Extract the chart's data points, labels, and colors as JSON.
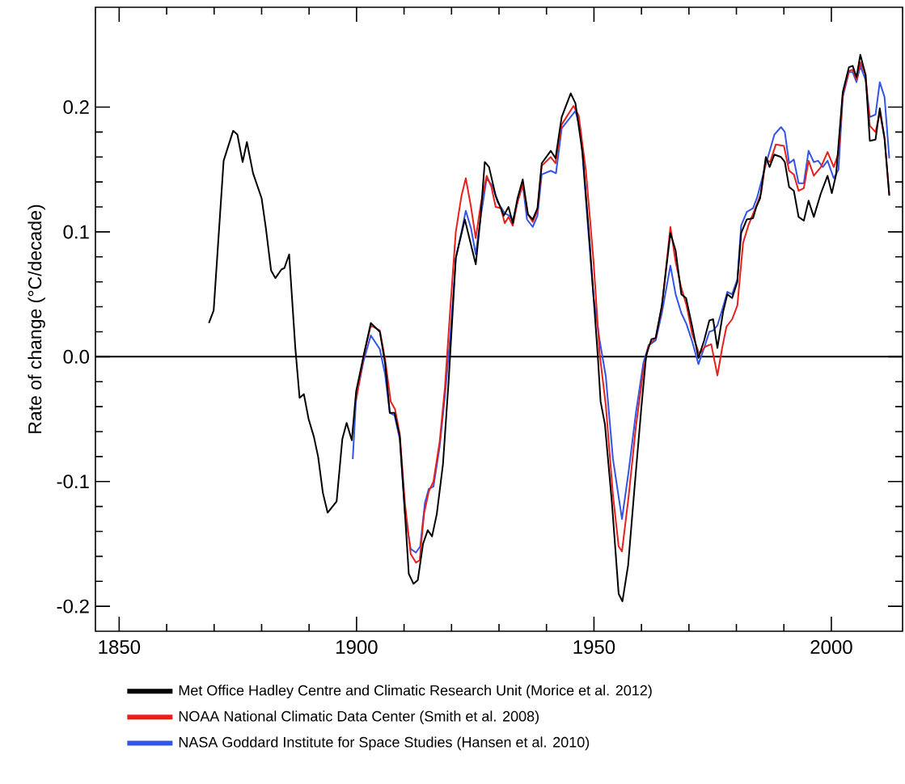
{
  "chart_data": {
    "type": "line",
    "ylabel": "Rate of change (°C/decade)",
    "xlim": [
      1845,
      2015
    ],
    "ylim": [
      -0.22,
      0.28
    ],
    "xticks": [
      1850,
      1900,
      1950,
      2000
    ],
    "yticks": [
      -0.2,
      -0.1,
      {
        "value": 0,
        "label": "0.0"
      },
      0.1,
      0.2
    ],
    "legend": "bottom",
    "ref_lines": [
      {
        "axis": "y",
        "value": 0,
        "color": "#000000"
      }
    ],
    "series": [
      {
        "name": "Met Office Hadley Centre and Climatic Research Unit (Morice et al. 2012)",
        "color": "#000000",
        "x": [
          1868.9,
          1869.9,
          1872.0,
          1874.0,
          1874.9,
          1876.0,
          1876.9,
          1878.2,
          1880.0,
          1880.9,
          1882.0,
          1882.9,
          1884.2,
          1884.8,
          1885.8,
          1887.1,
          1888.0,
          1888.9,
          1889.9,
          1891.0,
          1891.9,
          1892.9,
          1893.9,
          1895.8,
          1897.0,
          1897.9,
          1899.0,
          1899.9,
          1901.5,
          1903.0,
          1904.9,
          1906.0,
          1907.0,
          1908.0,
          1909.1,
          1910.2,
          1911.0,
          1912.0,
          1912.9,
          1914.0,
          1915.0,
          1915.9,
          1916.9,
          1918.2,
          1919.4,
          1920.9,
          1922.8,
          1925.1,
          1926.1,
          1927.0,
          1927.9,
          1929.3,
          1931.0,
          1932.0,
          1932.9,
          1933.9,
          1935.0,
          1936.1,
          1937.1,
          1938.1,
          1939.0,
          1940.9,
          1941.9,
          1943.2,
          1945.1,
          1946.1,
          1947.6,
          1949.1,
          1950.8,
          1951.4,
          1952.3,
          1953.8,
          1955.2,
          1956.0,
          1957.2,
          1958.5,
          1960.0,
          1961.0,
          1962.1,
          1963.0,
          1964.3,
          1966.1,
          1967.2,
          1968.4,
          1969.4,
          1970.7,
          1972.0,
          1973.2,
          1974.3,
          1975.1,
          1976.0,
          1977.2,
          1978.1,
          1979.1,
          1980.2,
          1981.0,
          1982.2,
          1983.5,
          1984.2,
          1985.0,
          1986.2,
          1987.0,
          1988.0,
          1989.4,
          1990.2,
          1991.1,
          1992.1,
          1993.1,
          1994.2,
          1995.2,
          1996.3,
          1997.8,
          1999.2,
          2000.1,
          2001.0,
          2002.4,
          2003.7,
          2004.5,
          2005.3,
          2006.1,
          2007.2,
          2008.1,
          2009.3,
          2010.2,
          2011.2,
          2012.2
        ],
        "values": [
          0.027,
          0.037,
          0.157,
          0.181,
          0.178,
          0.156,
          0.172,
          0.147,
          0.127,
          0.103,
          0.069,
          0.063,
          0.07,
          0.071,
          0.082,
          0.007,
          -0.033,
          -0.03,
          -0.05,
          -0.064,
          -0.08,
          -0.109,
          -0.125,
          -0.116,
          -0.066,
          -0.053,
          -0.067,
          -0.028,
          0.001,
          0.027,
          0.02,
          -0.005,
          -0.045,
          -0.045,
          -0.064,
          -0.126,
          -0.174,
          -0.182,
          -0.179,
          -0.15,
          -0.139,
          -0.144,
          -0.126,
          -0.086,
          -0.019,
          0.079,
          0.11,
          0.074,
          0.111,
          0.156,
          0.152,
          0.129,
          0.113,
          0.12,
          0.107,
          0.127,
          0.142,
          0.114,
          0.11,
          0.119,
          0.155,
          0.165,
          0.159,
          0.192,
          0.211,
          0.203,
          0.163,
          0.091,
          0.001,
          -0.036,
          -0.054,
          -0.118,
          -0.19,
          -0.196,
          -0.167,
          -0.107,
          -0.04,
          0.001,
          0.014,
          0.015,
          0.041,
          0.099,
          0.085,
          0.05,
          0.047,
          0.024,
          -0.001,
          0.013,
          0.029,
          0.03,
          0.007,
          0.036,
          0.05,
          0.047,
          0.06,
          0.099,
          0.11,
          0.111,
          0.12,
          0.127,
          0.16,
          0.152,
          0.162,
          0.16,
          0.156,
          0.136,
          0.133,
          0.112,
          0.109,
          0.125,
          0.112,
          0.131,
          0.145,
          0.131,
          0.146,
          0.212,
          0.232,
          0.233,
          0.224,
          0.242,
          0.226,
          0.173,
          0.174,
          0.199,
          0.175,
          0.129
        ]
      },
      {
        "name": "NOAA National Climatic Data Center (Smith et al. 2008)",
        "color": "#e8201c",
        "x": [
          1899.9,
          1901.5,
          1903.0,
          1904.9,
          1906.0,
          1907.2,
          1908.1,
          1909.1,
          1910.2,
          1911.4,
          1912.5,
          1913.3,
          1914.2,
          1915.2,
          1916.2,
          1917.5,
          1918.6,
          1919.8,
          1920.9,
          1922.1,
          1923.0,
          1924.1,
          1925.1,
          1926.2,
          1927.4,
          1928.4,
          1929.3,
          1930.4,
          1931.2,
          1932.0,
          1932.9,
          1933.9,
          1935.0,
          1936.1,
          1937.1,
          1938.1,
          1939.0,
          1940.9,
          1941.9,
          1943.2,
          1945.7,
          1946.8,
          1948.3,
          1949.9,
          1951.2,
          1952.5,
          1954.0,
          1955.2,
          1955.9,
          1957.3,
          1958.8,
          1960.4,
          1961.5,
          1963.0,
          1964.3,
          1966.1,
          1967.2,
          1968.4,
          1969.5,
          1970.7,
          1972.2,
          1973.4,
          1974.7,
          1976.0,
          1977.0,
          1977.9,
          1979.1,
          1980.2,
          1981.4,
          1982.5,
          1984.1,
          1985.2,
          1986.2,
          1987.1,
          1988.3,
          1990.0,
          1991.1,
          1992.1,
          1993.1,
          1994.2,
          1995.2,
          1996.3,
          1997.8,
          1999.2,
          2000.5,
          2001.5,
          2002.4,
          2003.7,
          2004.5,
          2005.3,
          2006.1,
          2007.2,
          2008.1,
          2009.3,
          2010.2,
          2011.2,
          2012.2
        ],
        "values": [
          -0.035,
          0.001,
          0.025,
          0.021,
          -0.002,
          -0.036,
          -0.042,
          -0.062,
          -0.118,
          -0.158,
          -0.165,
          -0.163,
          -0.126,
          -0.108,
          -0.1,
          -0.068,
          -0.025,
          0.042,
          0.1,
          0.129,
          0.143,
          0.12,
          0.095,
          0.123,
          0.145,
          0.136,
          0.12,
          0.119,
          0.107,
          0.112,
          0.105,
          0.124,
          0.138,
          0.114,
          0.108,
          0.117,
          0.153,
          0.16,
          0.155,
          0.186,
          0.201,
          0.193,
          0.149,
          0.077,
          0.002,
          -0.039,
          -0.111,
          -0.152,
          -0.156,
          -0.112,
          -0.057,
          -0.011,
          0.009,
          0.015,
          0.04,
          0.104,
          0.076,
          0.055,
          0.041,
          0.018,
          0.002,
          0.008,
          0.01,
          -0.015,
          0.007,
          0.024,
          0.03,
          0.041,
          0.091,
          0.105,
          0.12,
          0.131,
          0.158,
          0.156,
          0.17,
          0.169,
          0.149,
          0.146,
          0.133,
          0.135,
          0.157,
          0.145,
          0.152,
          0.164,
          0.152,
          0.163,
          0.21,
          0.229,
          0.23,
          0.222,
          0.236,
          0.226,
          0.185,
          0.18,
          0.196,
          0.175,
          0.13
        ]
      },
      {
        "name": "NASA Goddard Institute for Space Studies (Hansen et al. 2010)",
        "color": "#3355e6",
        "x": [
          1899.2,
          1899.9,
          1901.5,
          1903.0,
          1904.9,
          1906.0,
          1907.0,
          1908.0,
          1909.1,
          1910.2,
          1911.4,
          1912.5,
          1913.4,
          1914.4,
          1915.2,
          1916.2,
          1917.5,
          1918.6,
          1919.8,
          1920.9,
          1922.1,
          1923.0,
          1924.1,
          1925.1,
          1926.1,
          1927.4,
          1928.6,
          1929.7,
          1931.2,
          1932.2,
          1932.9,
          1933.9,
          1935.0,
          1935.9,
          1937.1,
          1938.1,
          1939.0,
          1940.9,
          1942.0,
          1943.2,
          1946.1,
          1947.2,
          1948.7,
          1949.9,
          1951.2,
          1952.5,
          1954.0,
          1955.9,
          1957.3,
          1958.8,
          1960.4,
          1961.5,
          1963.0,
          1964.3,
          1966.1,
          1967.2,
          1968.4,
          1969.5,
          1970.7,
          1972.0,
          1973.2,
          1974.3,
          1975.1,
          1976.0,
          1977.2,
          1978.1,
          1979.1,
          1980.2,
          1981.0,
          1982.2,
          1983.5,
          1984.4,
          1986.2,
          1988.0,
          1989.4,
          1990.2,
          1991.1,
          1992.1,
          1993.1,
          1994.2,
          1995.2,
          1996.3,
          1997.2,
          1998.2,
          1999.2,
          2000.5,
          2001.5,
          2002.4,
          2003.7,
          2004.5,
          2005.3,
          2006.1,
          2007.2,
          2008.1,
          2009.3,
          2010.2,
          2011.2,
          2012.2
        ],
        "values": [
          -0.082,
          -0.033,
          -0.003,
          0.017,
          0.006,
          -0.014,
          -0.045,
          -0.047,
          -0.066,
          -0.126,
          -0.154,
          -0.157,
          -0.152,
          -0.117,
          -0.106,
          -0.104,
          -0.072,
          -0.032,
          0.019,
          0.079,
          0.1,
          0.117,
          0.103,
          0.082,
          0.111,
          0.143,
          0.137,
          0.124,
          0.115,
          0.113,
          0.109,
          0.124,
          0.138,
          0.11,
          0.104,
          0.113,
          0.146,
          0.149,
          0.147,
          0.183,
          0.197,
          0.181,
          0.106,
          0.048,
          0.013,
          -0.016,
          -0.082,
          -0.13,
          -0.092,
          -0.046,
          -0.005,
          0.009,
          0.013,
          0.035,
          0.073,
          0.05,
          0.035,
          0.026,
          0.012,
          -0.006,
          0.007,
          0.02,
          0.021,
          0.025,
          0.04,
          0.052,
          0.05,
          0.062,
          0.105,
          0.116,
          0.119,
          0.128,
          0.154,
          0.178,
          0.184,
          0.18,
          0.155,
          0.158,
          0.139,
          0.139,
          0.165,
          0.156,
          0.157,
          0.152,
          0.157,
          0.143,
          0.15,
          0.208,
          0.228,
          0.228,
          0.22,
          0.233,
          0.222,
          0.192,
          0.194,
          0.22,
          0.208,
          0.159
        ]
      }
    ]
  }
}
